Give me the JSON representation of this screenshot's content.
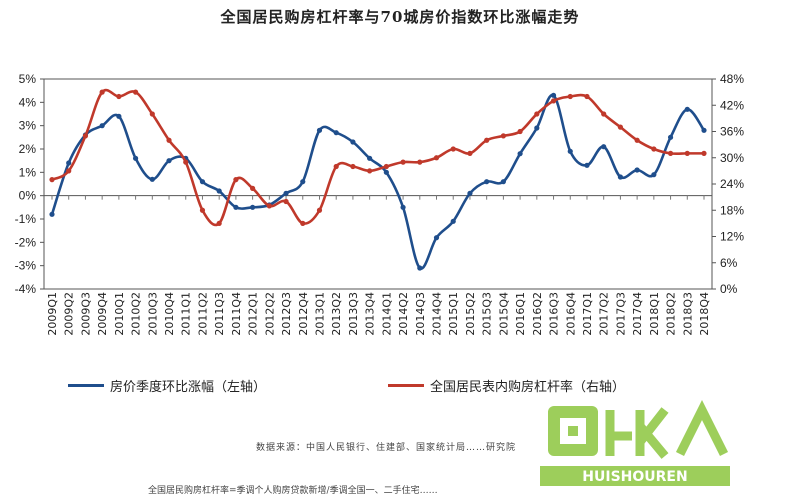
{
  "title": "全国居民购房杠杆率与70城房价指数环比涨幅走势",
  "source": "数据来源：中国人民银行、住建部、国家统计局……研究院",
  "footnote": "全国居民购房杠杆率=季调个人购房贷款新增/季调全国一、二手住宅……",
  "watermark_text": "回收 HUISHOUREN",
  "colors": {
    "blue": "#1f4e8c",
    "red": "#c0392b",
    "axis": "#333333"
  },
  "chart_data": {
    "type": "line",
    "title": "全国居民购房杠杆率与70城房价指数环比涨幅走势",
    "left_axis": {
      "ticks": [
        "5%",
        "4%",
        "3%",
        "2%",
        "1%",
        "0%",
        "-1%",
        "-2%",
        "-3%",
        "-4%"
      ],
      "ylim": [
        -4,
        5
      ]
    },
    "right_axis": {
      "ticks": [
        "48%",
        "42%",
        "36%",
        "30%",
        "24%",
        "18%",
        "12%",
        "6%",
        "0%"
      ],
      "ylim": [
        0,
        48
      ]
    },
    "categories": [
      "2009Q1",
      "2009Q2",
      "2009Q3",
      "2009Q4",
      "2010Q1",
      "2010Q2",
      "2010Q3",
      "2010Q4",
      "2011Q1",
      "2011Q2",
      "2011Q3",
      "2011Q4",
      "2012Q1",
      "2012Q2",
      "2012Q3",
      "2012Q4",
      "2013Q1",
      "2013Q2",
      "2013Q3",
      "2013Q4",
      "2014Q1",
      "2014Q2",
      "2014Q3",
      "2014Q4",
      "2015Q1",
      "2015Q2",
      "2015Q3",
      "2015Q4",
      "2016Q1",
      "2016Q2",
      "2016Q3",
      "2016Q4",
      "2017Q1",
      "2017Q2",
      "2017Q3",
      "2017Q4",
      "2018Q1",
      "2018Q2",
      "2018Q3",
      "2018Q4"
    ],
    "series": [
      {
        "name": "房价季度环比涨幅（左轴）",
        "axis": "left",
        "color": "#1f4e8c",
        "values": [
          -0.8,
          1.4,
          2.6,
          3.0,
          3.4,
          1.6,
          0.7,
          1.5,
          1.6,
          0.6,
          0.2,
          -0.5,
          -0.5,
          -0.4,
          0.1,
          0.6,
          2.8,
          2.7,
          2.3,
          1.6,
          1.0,
          -0.5,
          -3.1,
          -1.8,
          -1.1,
          0.1,
          0.6,
          0.6,
          1.8,
          2.9,
          4.3,
          1.9,
          1.3,
          2.1,
          0.8,
          1.1,
          0.9,
          2.5,
          3.7,
          2.8
        ]
      },
      {
        "name": "全国居民表内购房杠杆率（右轴）",
        "axis": "right",
        "color": "#c0392b",
        "values": [
          25,
          27,
          35,
          45,
          44,
          45,
          40,
          34,
          29,
          18,
          15,
          25,
          23,
          19,
          20,
          15,
          18,
          28,
          28,
          27,
          28,
          29,
          29,
          30,
          32,
          31,
          34,
          35,
          36,
          40,
          43,
          44,
          44,
          40,
          37,
          34,
          32,
          31,
          31,
          31
        ]
      }
    ]
  }
}
